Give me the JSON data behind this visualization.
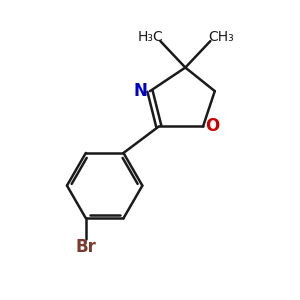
{
  "background_color": "#ffffff",
  "bond_color": "#1a1a1a",
  "nitrogen_color": "#0000cc",
  "oxygen_color": "#cc0000",
  "bromine_color": "#7a3b2e",
  "figsize": [
    3.0,
    3.0
  ],
  "dpi": 100,
  "xlim": [
    0,
    10
  ],
  "ylim": [
    0,
    10
  ],
  "lw": 1.8,
  "methyl_labels": [
    "H₃C",
    "CH₃"
  ],
  "br_label": "Br",
  "N_label": "N",
  "O_label": "O"
}
